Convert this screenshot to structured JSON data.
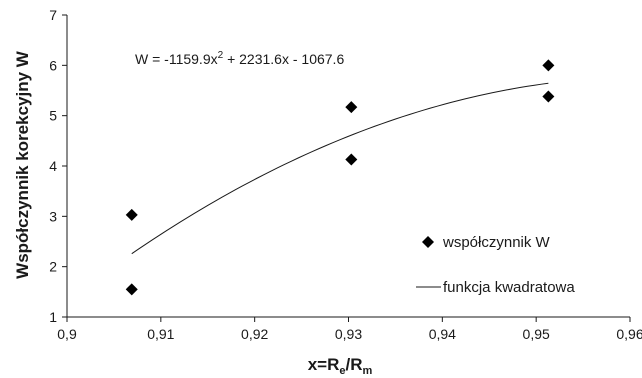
{
  "chart_data": {
    "type": "scatter",
    "title": "",
    "ylabel": "Współczynnik korekcyjny W",
    "xlabel": {
      "prefix": "x=R",
      "sub1": "e",
      "mid": "/R",
      "sub2": "m"
    },
    "xlim": [
      0.9,
      0.96
    ],
    "ylim": [
      1,
      7
    ],
    "x_ticks": [
      "0,9",
      "0,91",
      "0,92",
      "0,93",
      "0,94",
      "0,95",
      "0,96"
    ],
    "y_ticks": [
      "1",
      "2",
      "3",
      "4",
      "5",
      "6",
      "7"
    ],
    "grid": false,
    "series": [
      {
        "name": "współczynnik W",
        "kind": "points",
        "marker": "diamond",
        "x": [
          0.9069,
          0.9069,
          0.9303,
          0.9303,
          0.9513,
          0.9513
        ],
        "y": [
          3.03,
          1.55,
          5.17,
          4.13,
          6.0,
          5.38
        ]
      },
      {
        "name": "funkcja kwadratowa",
        "kind": "trendline",
        "coefficients": {
          "a": -1159.9,
          "b": 2231.6,
          "c": -1067.6
        },
        "x_range": [
          0.9069,
          0.9513
        ]
      }
    ],
    "equation": {
      "text": "W = -1159.9x",
      "sup": "2",
      "rest": " + 2231.6x - 1067.6"
    },
    "legend_position": "bottom-right"
  }
}
